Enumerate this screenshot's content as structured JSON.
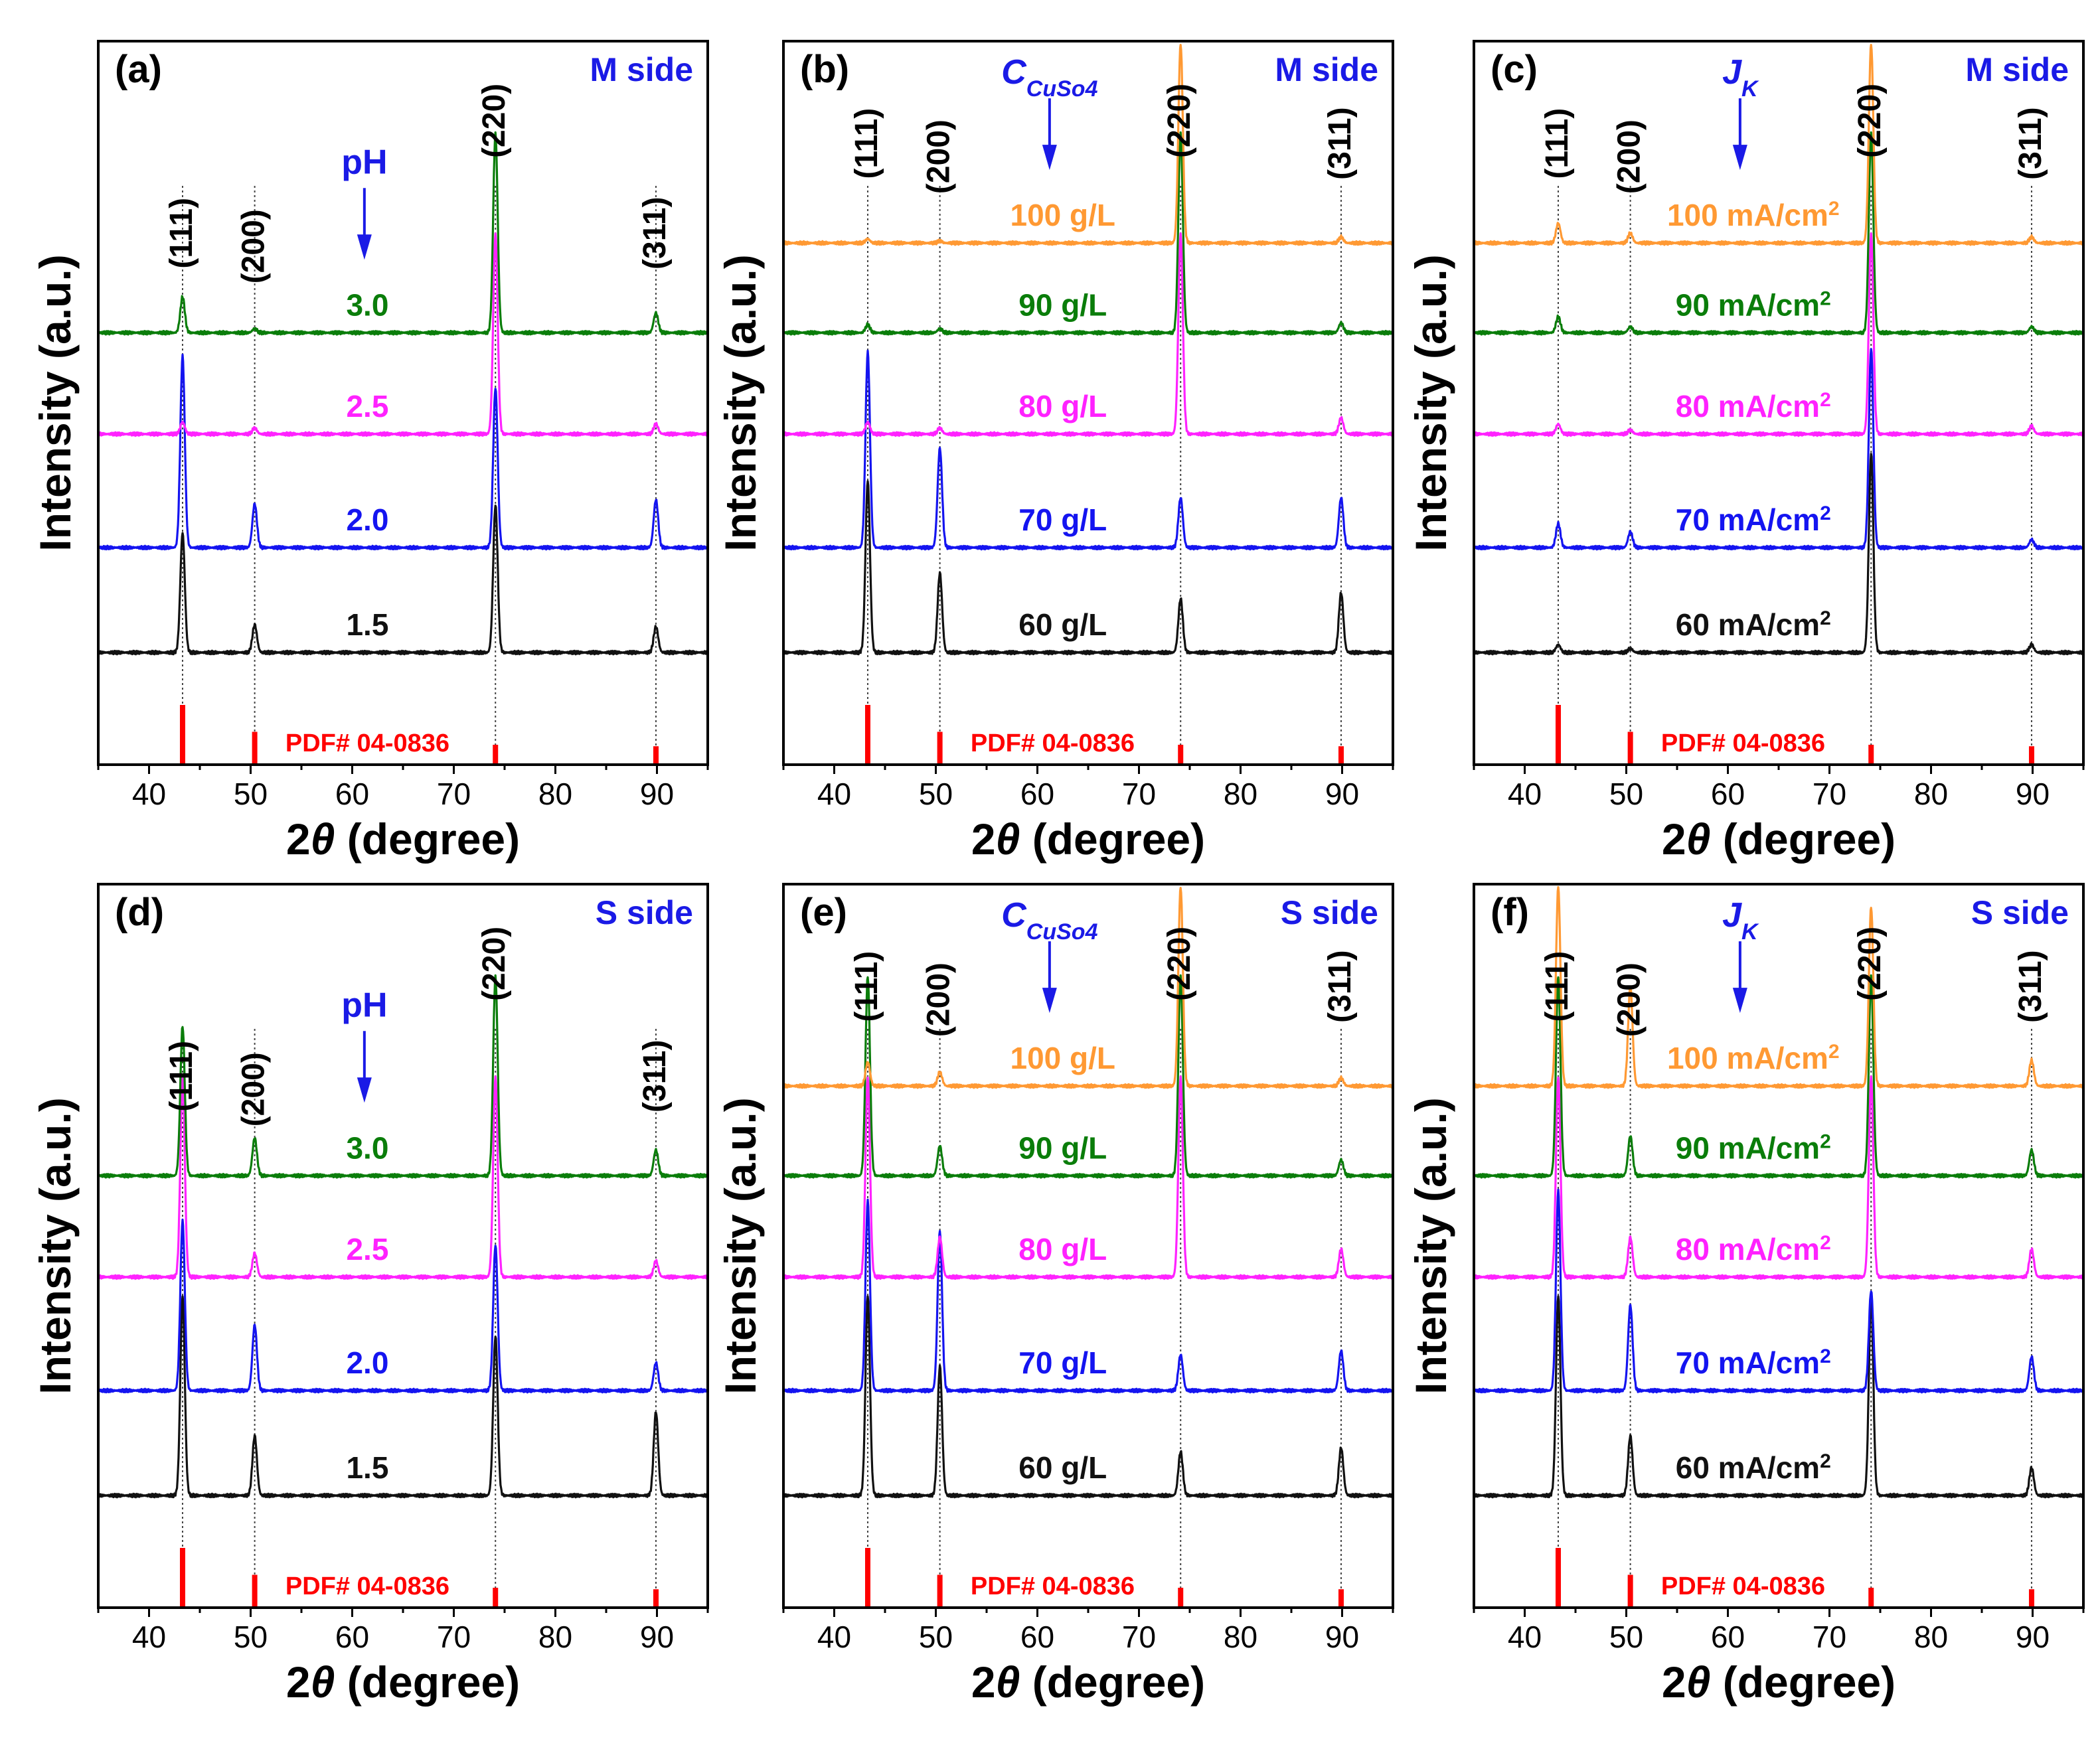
{
  "figure": {
    "shared": {
      "xlabel_prefix": "2",
      "xlabel_symbol": "θ",
      "xlabel_suffix": " (degree)",
      "ylabel": "Intensity (a.u.)",
      "reference_label": "PDF# 04-0836",
      "xlim": [
        35,
        95
      ],
      "xticks": [
        40,
        50,
        60,
        70,
        80,
        90
      ],
      "peak_positions": [
        43.3,
        50.4,
        74.1,
        89.9
      ],
      "peak_labels": [
        "(111)",
        "(200)",
        "(220)",
        "(311)"
      ],
      "reference_peaks": [
        {
          "x": 43.3,
          "relative_intensity": 100
        },
        {
          "x": 50.4,
          "relative_intensity": 46
        },
        {
          "x": 74.1,
          "relative_intensity": 20
        },
        {
          "x": 89.9,
          "relative_intensity": 17
        }
      ],
      "colors": {
        "black": "#111111",
        "blue": "#1414f0",
        "magenta": "#ff22ff",
        "green": "#0a7d0a",
        "orange": "#ff9933",
        "reference": "#ff0000",
        "annotation": "#1a1ae6"
      }
    }
  },
  "chart_data": [
    {
      "type": "line",
      "panel": "(a)",
      "side": "M side",
      "arrow_label": "pH",
      "arrow_sub": "",
      "series": [
        {
          "name": "1.5",
          "color": "black",
          "peaks": [
            60,
            14,
            74,
            13
          ]
        },
        {
          "name": "2.0",
          "color": "blue",
          "peaks": [
            96,
            22,
            80,
            24
          ]
        },
        {
          "name": "2.5",
          "color": "magenta",
          "peaks": [
            6,
            3,
            100,
            5
          ]
        },
        {
          "name": "3.0",
          "color": "green",
          "peaks": [
            18,
            2,
            100,
            10
          ]
        }
      ]
    },
    {
      "type": "line",
      "panel": "(b)",
      "side": "M side",
      "arrow_label": "C",
      "arrow_sub": "CuSo4",
      "series": [
        {
          "name": "60 g/L",
          "color": "black",
          "peaks": [
            86,
            40,
            27,
            30
          ]
        },
        {
          "name": "70 g/L",
          "color": "blue",
          "peaks": [
            98,
            50,
            25,
            25
          ]
        },
        {
          "name": "80 g/L",
          "color": "magenta",
          "peaks": [
            6,
            3,
            100,
            8
          ]
        },
        {
          "name": "90 g/L",
          "color": "green",
          "peaks": [
            4,
            2,
            100,
            5
          ]
        },
        {
          "name": "100 g/L",
          "color": "orange",
          "peaks": [
            2,
            1,
            100,
            3
          ]
        }
      ]
    },
    {
      "type": "line",
      "panel": "(c)",
      "side": "M side",
      "arrow_label": "J",
      "arrow_sub": "K",
      "series": [
        {
          "name": "60 mA/cm",
          "color": "black",
          "peaks": [
            4,
            2,
            100,
            4
          ]
        },
        {
          "name": "70 mA/cm",
          "color": "blue",
          "peaks": [
            12,
            8,
            100,
            4
          ]
        },
        {
          "name": "80 mA/cm",
          "color": "magenta",
          "peaks": [
            5,
            2,
            100,
            4
          ]
        },
        {
          "name": "90 mA/cm",
          "color": "green",
          "peaks": [
            8,
            3,
            100,
            3
          ]
        },
        {
          "name": "100 mA/cm",
          "color": "orange",
          "peaks": [
            10,
            5,
            100,
            3
          ]
        }
      ]
    },
    {
      "type": "line",
      "panel": "(d)",
      "side": "S side",
      "arrow_label": "pH",
      "arrow_sub": "",
      "series": [
        {
          "name": "1.5",
          "color": "black",
          "peaks": [
            100,
            30,
            80,
            42
          ]
        },
        {
          "name": "2.0",
          "color": "blue",
          "peaks": [
            85,
            33,
            73,
            14
          ]
        },
        {
          "name": "2.5",
          "color": "magenta",
          "peaks": [
            100,
            12,
            100,
            8
          ]
        },
        {
          "name": "3.0",
          "color": "green",
          "peaks": [
            75,
            19,
            100,
            13
          ]
        }
      ]
    },
    {
      "type": "line",
      "panel": "(e)",
      "side": "S side",
      "arrow_label": "C",
      "arrow_sub": "CuSo4",
      "series": [
        {
          "name": "60 g/L",
          "color": "black",
          "peaks": [
            100,
            65,
            22,
            24
          ]
        },
        {
          "name": "70 g/L",
          "color": "blue",
          "peaks": [
            95,
            80,
            18,
            20
          ]
        },
        {
          "name": "80 g/L",
          "color": "magenta",
          "peaks": [
            100,
            20,
            100,
            14
          ]
        },
        {
          "name": "90 g/L",
          "color": "green",
          "peaks": [
            100,
            15,
            100,
            8
          ]
        },
        {
          "name": "100 g/L",
          "color": "orange",
          "peaks": [
            12,
            7,
            100,
            4
          ]
        }
      ]
    },
    {
      "type": "line",
      "panel": "(f)",
      "side": "S side",
      "arrow_label": "J",
      "arrow_sub": "K",
      "series": [
        {
          "name": "60 mA/cm",
          "color": "black",
          "peaks": [
            100,
            30,
            100,
            14
          ]
        },
        {
          "name": "70 mA/cm",
          "color": "blue",
          "peaks": [
            100,
            43,
            50,
            17
          ]
        },
        {
          "name": "80 mA/cm",
          "color": "magenta",
          "peaks": [
            100,
            20,
            100,
            14
          ]
        },
        {
          "name": "90 mA/cm",
          "color": "green",
          "peaks": [
            100,
            20,
            100,
            13
          ]
        },
        {
          "name": "100 mA/cm",
          "color": "orange",
          "peaks": [
            100,
            50,
            90,
            13
          ]
        }
      ]
    }
  ],
  "superscript_units": "2"
}
